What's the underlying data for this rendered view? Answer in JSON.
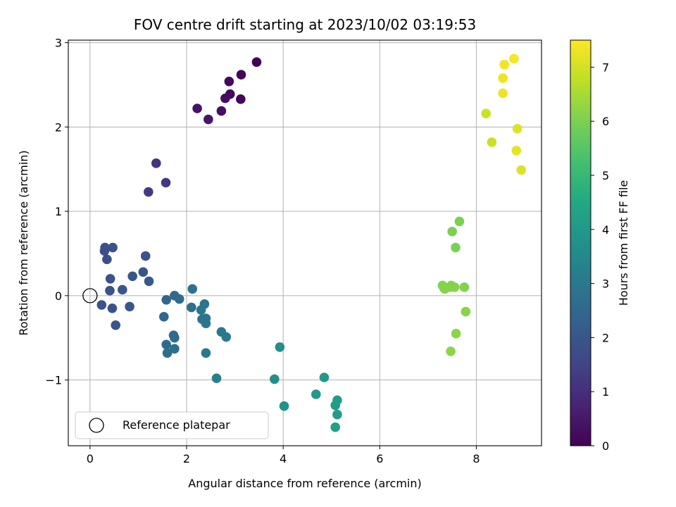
{
  "chart_data": {
    "type": "scatter",
    "title": "FOV centre drift starting at 2023/10/02 03:19:53",
    "xlabel": "Angular distance from reference (arcmin)",
    "ylabel": "Rotation from reference (arcmin)",
    "xlim": [
      -0.45,
      9.35
    ],
    "ylim": [
      -1.78,
      3.03
    ],
    "xticks": [
      0,
      2,
      4,
      6,
      8
    ],
    "yticks": [
      -1,
      0,
      1,
      2,
      3
    ],
    "ytick_labels": [
      "−1",
      "0",
      "1",
      "2",
      "3"
    ],
    "grid": true,
    "colormap": "viridis",
    "colorbar": {
      "label": "Hours from first FF file",
      "range": [
        0,
        7.5
      ],
      "ticks": [
        0,
        1,
        2,
        3,
        4,
        5,
        6,
        7
      ]
    },
    "legend": {
      "location": "lower-left",
      "entries": [
        {
          "label": "Reference platepar",
          "marker": "open-circle"
        }
      ]
    },
    "reference_point": {
      "x": 0,
      "y": 0
    },
    "points": [
      {
        "x": 3.45,
        "y": 2.77,
        "h": 0.0
      },
      {
        "x": 3.13,
        "y": 2.62,
        "h": 0.1
      },
      {
        "x": 2.88,
        "y": 2.54,
        "h": 0.15
      },
      {
        "x": 2.9,
        "y": 2.39,
        "h": 0.2
      },
      {
        "x": 2.8,
        "y": 2.34,
        "h": 0.25
      },
      {
        "x": 3.12,
        "y": 2.33,
        "h": 0.1
      },
      {
        "x": 2.72,
        "y": 2.19,
        "h": 0.3
      },
      {
        "x": 2.22,
        "y": 2.22,
        "h": 0.4
      },
      {
        "x": 2.45,
        "y": 2.09,
        "h": 0.45
      },
      {
        "x": 1.37,
        "y": 1.57,
        "h": 1.1
      },
      {
        "x": 1.57,
        "y": 1.34,
        "h": 1.2
      },
      {
        "x": 1.21,
        "y": 1.23,
        "h": 1.3
      },
      {
        "x": 0.31,
        "y": 0.57,
        "h": 1.8
      },
      {
        "x": 0.47,
        "y": 0.57,
        "h": 1.85
      },
      {
        "x": 0.3,
        "y": 0.53,
        "h": 1.8
      },
      {
        "x": 1.15,
        "y": 0.47,
        "h": 1.9
      },
      {
        "x": 0.35,
        "y": 0.43,
        "h": 1.8
      },
      {
        "x": 1.1,
        "y": 0.28,
        "h": 2.0
      },
      {
        "x": 0.88,
        "y": 0.23,
        "h": 2.0
      },
      {
        "x": 0.42,
        "y": 0.2,
        "h": 1.9
      },
      {
        "x": 1.22,
        "y": 0.17,
        "h": 2.1
      },
      {
        "x": 0.67,
        "y": 0.07,
        "h": 2.0
      },
      {
        "x": 0.41,
        "y": 0.06,
        "h": 1.9
      },
      {
        "x": 0.24,
        "y": -0.11,
        "h": 1.9
      },
      {
        "x": 0.46,
        "y": -0.15,
        "h": 1.95
      },
      {
        "x": 0.82,
        "y": -0.13,
        "h": 2.0
      },
      {
        "x": 0.53,
        "y": -0.35,
        "h": 2.0
      },
      {
        "x": 1.58,
        "y": -0.05,
        "h": 2.5
      },
      {
        "x": 1.75,
        "y": 0.0,
        "h": 2.6
      },
      {
        "x": 1.85,
        "y": -0.04,
        "h": 2.6
      },
      {
        "x": 2.12,
        "y": 0.08,
        "h": 2.8
      },
      {
        "x": 2.1,
        "y": -0.14,
        "h": 2.8
      },
      {
        "x": 2.3,
        "y": -0.17,
        "h": 2.9
      },
      {
        "x": 2.37,
        "y": -0.1,
        "h": 2.9
      },
      {
        "x": 2.4,
        "y": -0.27,
        "h": 2.95
      },
      {
        "x": 2.32,
        "y": -0.28,
        "h": 2.9
      },
      {
        "x": 2.4,
        "y": -0.33,
        "h": 2.95
      },
      {
        "x": 1.53,
        "y": -0.25,
        "h": 2.5
      },
      {
        "x": 1.73,
        "y": -0.47,
        "h": 2.6
      },
      {
        "x": 1.75,
        "y": -0.5,
        "h": 2.6
      },
      {
        "x": 1.58,
        "y": -0.58,
        "h": 2.6
      },
      {
        "x": 1.75,
        "y": -0.63,
        "h": 2.7
      },
      {
        "x": 1.6,
        "y": -0.68,
        "h": 2.65
      },
      {
        "x": 2.72,
        "y": -0.43,
        "h": 3.0
      },
      {
        "x": 2.82,
        "y": -0.49,
        "h": 3.05
      },
      {
        "x": 2.4,
        "y": -0.68,
        "h": 3.0
      },
      {
        "x": 2.62,
        "y": -0.98,
        "h": 3.2
      },
      {
        "x": 3.93,
        "y": -0.61,
        "h": 3.7
      },
      {
        "x": 3.82,
        "y": -0.99,
        "h": 3.7
      },
      {
        "x": 4.02,
        "y": -1.31,
        "h": 3.8
      },
      {
        "x": 4.85,
        "y": -0.97,
        "h": 4.0
      },
      {
        "x": 4.68,
        "y": -1.17,
        "h": 4.05
      },
      {
        "x": 5.12,
        "y": -1.24,
        "h": 4.1
      },
      {
        "x": 5.08,
        "y": -1.3,
        "h": 4.1
      },
      {
        "x": 5.12,
        "y": -1.41,
        "h": 4.15
      },
      {
        "x": 5.08,
        "y": -1.56,
        "h": 4.2
      },
      {
        "x": 7.65,
        "y": 0.88,
        "h": 6.0
      },
      {
        "x": 7.5,
        "y": 0.76,
        "h": 6.0
      },
      {
        "x": 7.57,
        "y": 0.57,
        "h": 6.0
      },
      {
        "x": 7.3,
        "y": 0.12,
        "h": 6.1
      },
      {
        "x": 7.35,
        "y": 0.08,
        "h": 6.1
      },
      {
        "x": 7.45,
        "y": 0.1,
        "h": 6.1
      },
      {
        "x": 7.48,
        "y": 0.12,
        "h": 6.1
      },
      {
        "x": 7.55,
        "y": 0.1,
        "h": 6.1
      },
      {
        "x": 7.75,
        "y": 0.1,
        "h": 6.1
      },
      {
        "x": 7.33,
        "y": 0.09,
        "h": 6.1
      },
      {
        "x": 7.78,
        "y": -0.19,
        "h": 6.15
      },
      {
        "x": 7.58,
        "y": -0.45,
        "h": 6.2
      },
      {
        "x": 7.47,
        "y": -0.66,
        "h": 6.2
      },
      {
        "x": 8.78,
        "y": 2.81,
        "h": 7.4
      },
      {
        "x": 8.58,
        "y": 2.74,
        "h": 7.35
      },
      {
        "x": 8.55,
        "y": 2.58,
        "h": 7.3
      },
      {
        "x": 8.55,
        "y": 2.4,
        "h": 7.3
      },
      {
        "x": 8.2,
        "y": 2.16,
        "h": 6.9
      },
      {
        "x": 8.85,
        "y": 1.98,
        "h": 7.1
      },
      {
        "x": 8.32,
        "y": 1.82,
        "h": 6.9
      },
      {
        "x": 8.83,
        "y": 1.72,
        "h": 7.2
      },
      {
        "x": 8.93,
        "y": 1.49,
        "h": 7.1
      }
    ]
  }
}
